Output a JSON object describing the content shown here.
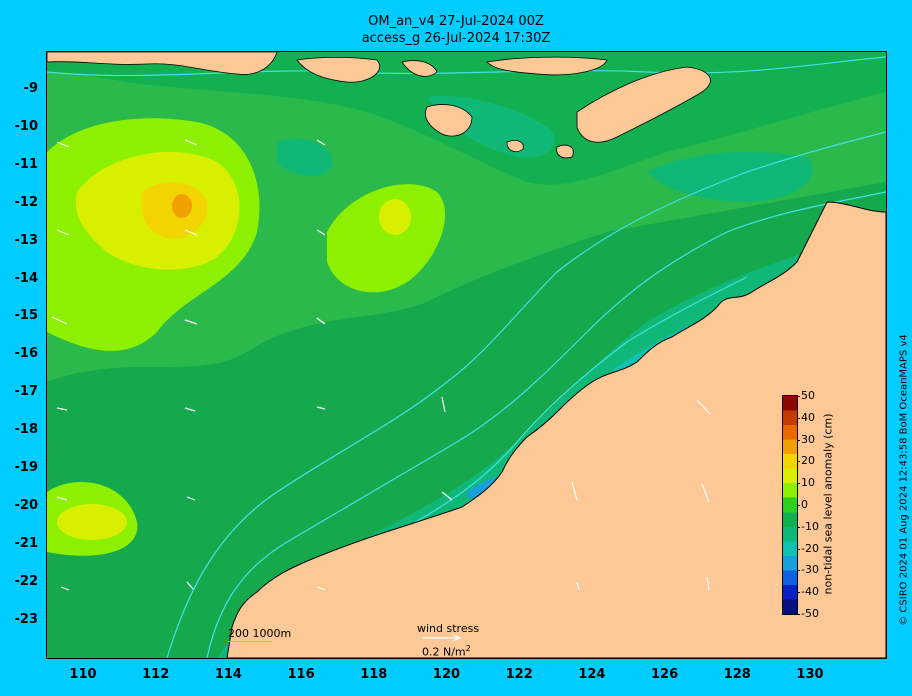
{
  "title": {
    "line1": "OM_an_v4  27-Jul-2024 00Z",
    "line2": "access_g 26-Jul-2024 17:30Z"
  },
  "credit": "© CSIRO 2024  01 Aug 2024 12:43:58 BoM OceanMAPS v4",
  "axes": {
    "lat_labels": [
      "-9",
      "-10",
      "-11",
      "-12",
      "-13",
      "-14",
      "-15",
      "-16",
      "-17",
      "-18",
      "-19",
      "-20",
      "-21",
      "-22",
      "-23"
    ],
    "lon_labels": [
      "110",
      "112",
      "114",
      "116",
      "118",
      "120",
      "122",
      "124",
      "126",
      "128",
      "130"
    ],
    "lon_range": [
      109,
      132.2
    ],
    "lat_range": [
      -24,
      -8
    ]
  },
  "legend": {
    "depth_scale": "200  1000m",
    "wind_stress_label": "wind stress",
    "wind_stress_unit": "0.2 N/m",
    "wind_stress_unit_sup": "2"
  },
  "colorbar": {
    "label": "non-tidal sea level anomaly (cm)",
    "ticks": [
      "50",
      "40",
      "30",
      "20",
      "10",
      "0",
      "-10",
      "-20",
      "-30",
      "-40",
      "-50"
    ],
    "colors": [
      "#8b0a00",
      "#c43a00",
      "#e86a00",
      "#f2a000",
      "#f2d400",
      "#d8f000",
      "#8cf000",
      "#2ad01c",
      "#12b050",
      "#10b878",
      "#10c0b0",
      "#1aa0d8",
      "#1060e0",
      "#0a20c0",
      "#061080"
    ]
  },
  "colors": {
    "land": "#fcc896",
    "ocean_background": "#00ccff",
    "isobath": "#45e0e6"
  }
}
